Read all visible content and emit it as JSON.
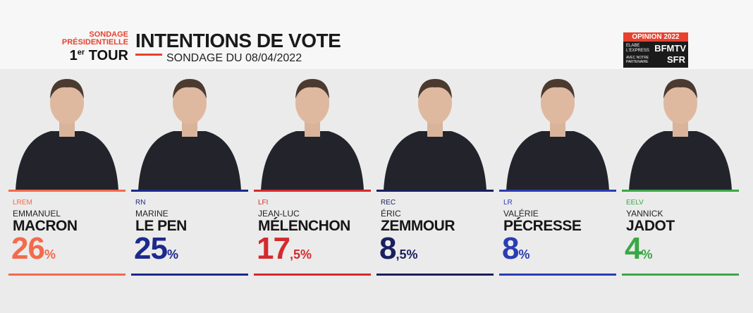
{
  "header": {
    "poll_type": "SONDAGE PRÉSIDENTIELLE",
    "round_number": "1",
    "round_suffix": "er",
    "round_word": "TOUR",
    "title": "INTENTIONS DE VOTE",
    "subtitle": "SONDAGE DU 08/04/2022"
  },
  "logo": {
    "top": "OPINION 2022",
    "institute": "ELABE",
    "partner_press": "L'EXPRESS",
    "channel": "BFMTV",
    "partner_note": "AVEC NOTRE PARTENAIRE",
    "partner": "SFR"
  },
  "candidates": [
    {
      "party": "LREM",
      "first_name": "EMMANUEL",
      "last_name": "MACRON",
      "score": 26,
      "score_label": "26%",
      "color": "#f36a4c"
    },
    {
      "party": "RN",
      "first_name": "MARINE",
      "last_name": "LE PEN",
      "score": 25,
      "score_label": "25%",
      "color": "#1c2a8c"
    },
    {
      "party": "LFI",
      "first_name": "JEAN-LUC",
      "last_name": "MÉLENCHON",
      "score": 17.5,
      "score_label": "17,5%",
      "color": "#d42a2e"
    },
    {
      "party": "REC",
      "first_name": "ÉRIC",
      "last_name": "ZEMMOUR",
      "score": 8.5,
      "score_label": "8,5%",
      "color": "#1a1f5e"
    },
    {
      "party": "LR",
      "first_name": "VALÉRIE",
      "last_name": "PÉCRESSE",
      "score": 8,
      "score_label": "8%",
      "color": "#2a3db4"
    },
    {
      "party": "EELV",
      "first_name": "YANNICK",
      "last_name": "JADOT",
      "score": 4,
      "score_label": "4%",
      "color": "#3aa845"
    }
  ]
}
